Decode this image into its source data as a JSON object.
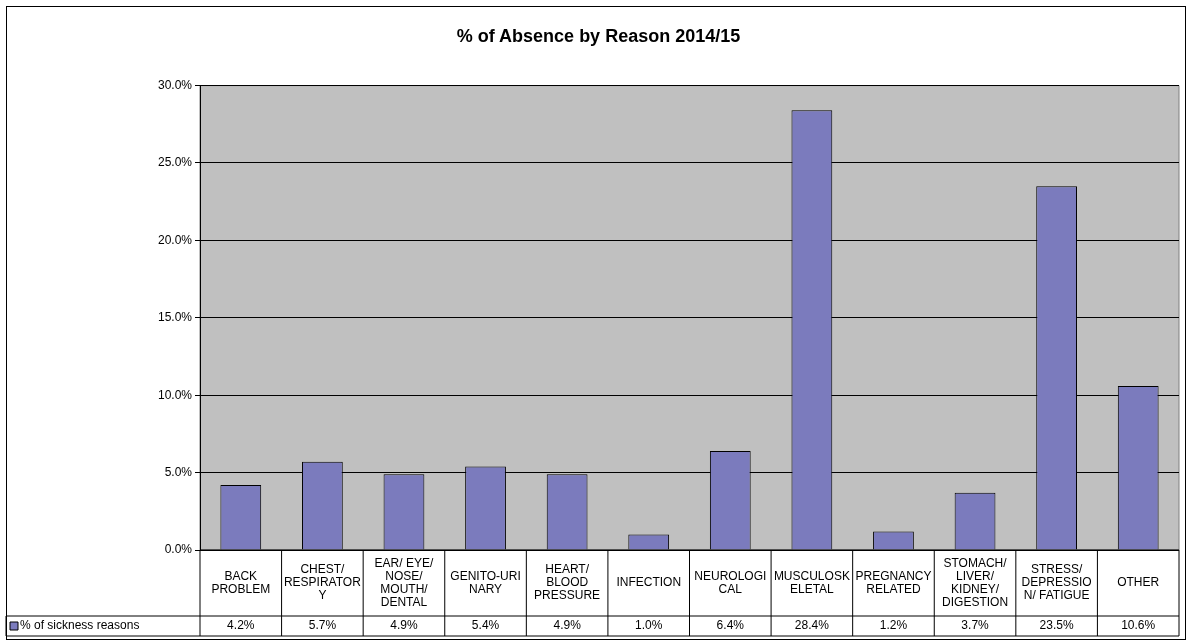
{
  "chart_data": {
    "type": "bar",
    "title": "% of Absence by Reason 2014/15",
    "categories": [
      "BACK PROBLEM",
      "CHEST/ RESPIRATORY",
      "EAR/ EYE/ NOSE/ MOUTH/ DENTAL",
      "GENITO-URINARY",
      "HEART/ BLOOD PRESSURE",
      "INFECTION",
      "NEUROLOGICAL",
      "MUSCULOSKELETAL",
      "PREGNANCY RELATED",
      "STOMACH/ LIVER/ KIDNEY/ DIGESTION",
      "STRESS/ DEPRESSION/ FATIGUE",
      "OTHER"
    ],
    "series": [
      {
        "name": "% of sickness reasons",
        "color": "#7b7bbd",
        "values": [
          4.2,
          5.7,
          4.9,
          5.4,
          4.9,
          1.0,
          6.4,
          28.4,
          1.2,
          3.7,
          23.5,
          10.6
        ],
        "value_labels": [
          "4.2%",
          "5.7%",
          "4.9%",
          "5.4%",
          "4.9%",
          "1.0%",
          "6.4%",
          "28.4%",
          "1.2%",
          "3.7%",
          "23.5%",
          "10.6%"
        ]
      }
    ],
    "ylim": [
      0,
      30
    ],
    "yticks": [
      {
        "value": 0,
        "label": "0.0%"
      },
      {
        "value": 5,
        "label": "5.0%"
      },
      {
        "value": 10,
        "label": "10.0%"
      },
      {
        "value": 15,
        "label": "15.0%"
      },
      {
        "value": 20,
        "label": "20.0%"
      },
      {
        "value": 25,
        "label": "25.0%"
      },
      {
        "value": 30,
        "label": "30.0%"
      }
    ],
    "grid": "y"
  }
}
